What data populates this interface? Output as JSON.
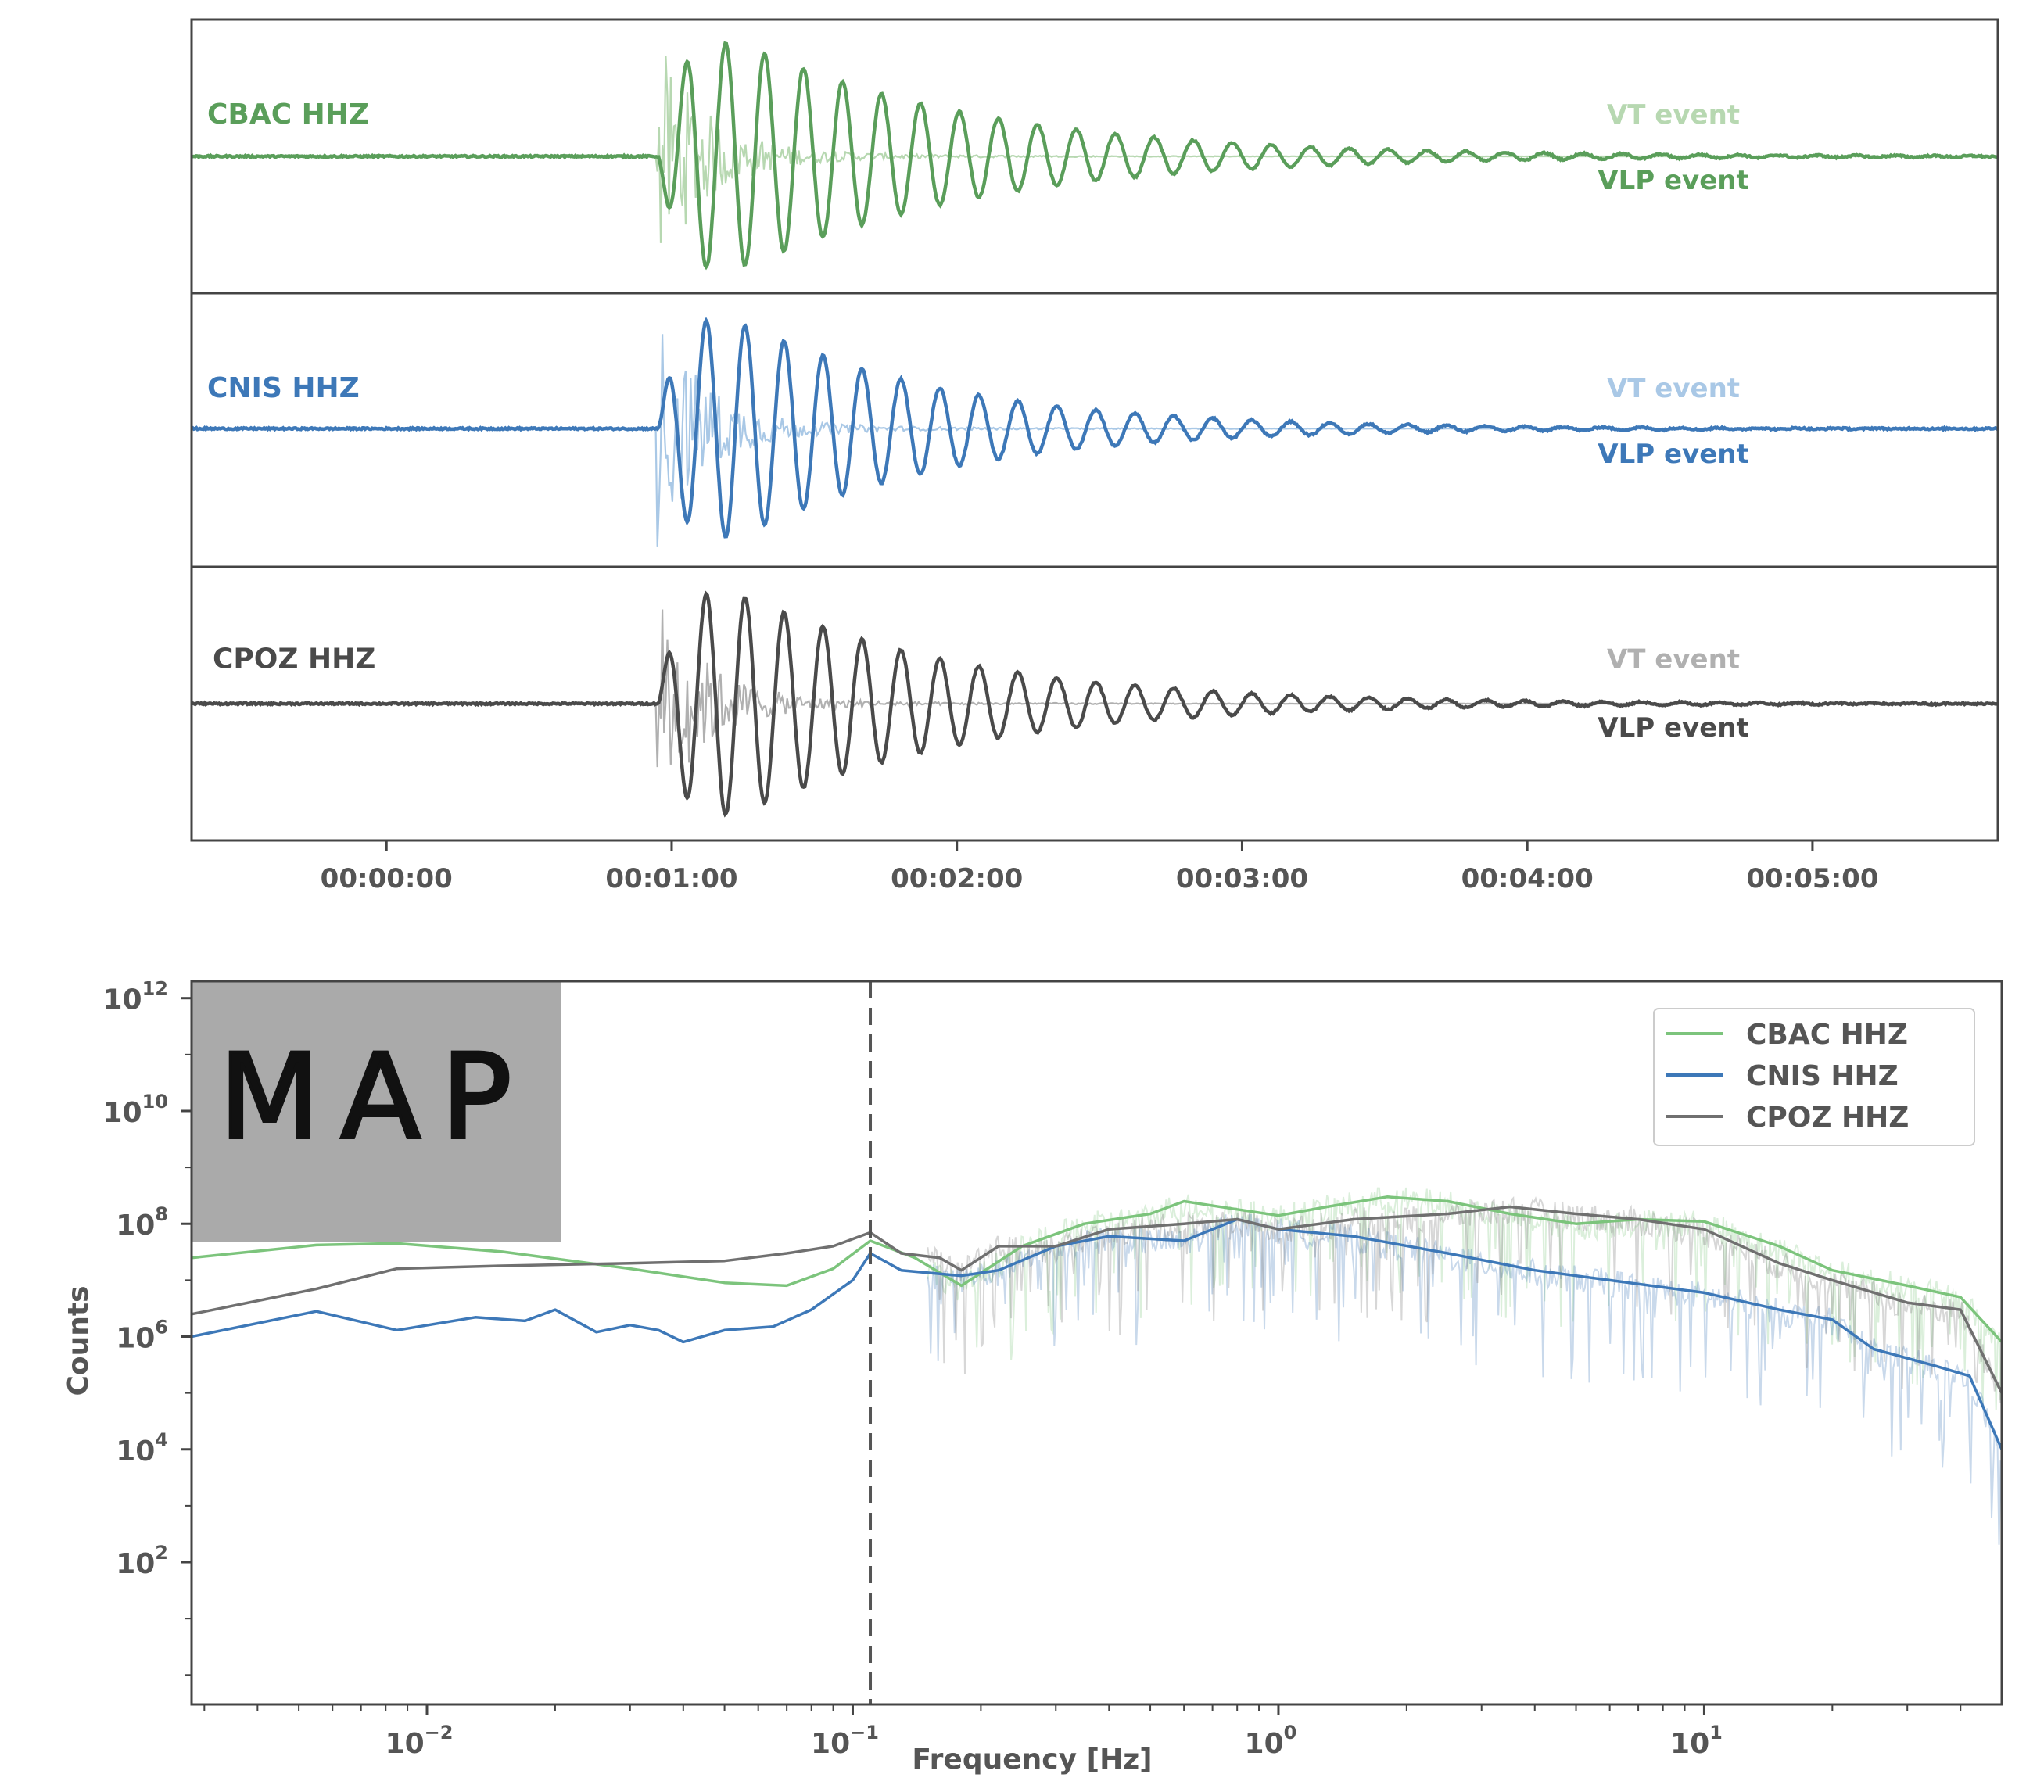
{
  "chart_data": [
    {
      "type": "line",
      "panel": "waveforms",
      "x_unit": "time (HH:MM:SS)",
      "xlim": [
        "-00:00:41",
        "00:05:39"
      ],
      "xticks": [
        "00:00:00",
        "00:01:00",
        "00:02:00",
        "00:03:00",
        "00:04:00",
        "00:05:00"
      ],
      "traces": [
        {
          "station": "CBAC HHZ",
          "color": "#5a9e5a",
          "vt_color": "#b7d8b1",
          "vt_label": "VT event",
          "vlp_label": "VLP event",
          "onset": "00:00:57",
          "vlp_period_s": 8.2,
          "vlp_decay_s": 48,
          "vlp_peak_relative": 1.0,
          "vt_peak_relative": 0.95
        },
        {
          "station": "CNIS HHZ",
          "color": "#3d78b8",
          "vt_color": "#a9c8e6",
          "vt_label": "VT event",
          "vlp_label": "VLP event",
          "onset": "00:00:57",
          "vlp_period_s": 8.2,
          "vlp_decay_s": 42,
          "vlp_peak_relative": 1.0,
          "vt_peak_relative": 0.95
        },
        {
          "station": "CPOZ HHZ",
          "color": "#4a4a4a",
          "vt_color": "#b0b0b0",
          "vt_label": "VT event",
          "vlp_label": "VLP event",
          "onset": "00:00:57",
          "vlp_period_s": 8.2,
          "vlp_decay_s": 45,
          "vlp_peak_relative": 1.0,
          "vt_peak_relative": 0.9
        }
      ]
    },
    {
      "type": "line",
      "panel": "spectra",
      "xlabel": "Frequency [Hz]",
      "ylabel": "Counts",
      "xscale": "log",
      "yscale": "log",
      "xlim": [
        0.0028,
        50
      ],
      "ylim": [
        0.3,
        2000000000000.0
      ],
      "xticks": [
        {
          "base": "10",
          "exp": "−2"
        },
        {
          "base": "10",
          "exp": "−1"
        },
        {
          "base": "10",
          "exp": "0"
        },
        {
          "base": "10",
          "exp": "1"
        }
      ],
      "yticks": [
        {
          "base": "10",
          "exp": "2"
        },
        {
          "base": "10",
          "exp": "4"
        },
        {
          "base": "10",
          "exp": "6"
        },
        {
          "base": "10",
          "exp": "8"
        },
        {
          "base": "10",
          "exp": "10"
        },
        {
          "base": "10",
          "exp": "12"
        }
      ],
      "vline_x": 0.11,
      "legend_position": "top-right",
      "inset_text": "MAP",
      "series": [
        {
          "name": "CBAC HHZ",
          "color": "#7cc47c",
          "x": [
            0.0028,
            0.0055,
            0.0085,
            0.015,
            0.03,
            0.05,
            0.07,
            0.09,
            0.11,
            0.14,
            0.18,
            0.25,
            0.35,
            0.5,
            0.6,
            0.8,
            1.0,
            1.3,
            1.8,
            2.5,
            3.5,
            5,
            7,
            10,
            15,
            20,
            30,
            40,
            50
          ],
          "y": [
            25000000.0,
            42000000.0,
            45000000.0,
            32000000.0,
            16000000.0,
            9000000.0,
            8000000.0,
            16000000.0,
            50000000.0,
            25000000.0,
            8000000.0,
            40000000.0,
            100000000.0,
            150000000.0,
            250000000.0,
            180000000.0,
            140000000.0,
            200000000.0,
            300000000.0,
            250000000.0,
            150000000.0,
            100000000.0,
            120000000.0,
            110000000.0,
            40000000.0,
            15000000.0,
            8000000.0,
            5000000.0,
            800000.0
          ]
        },
        {
          "name": "CNIS HHZ",
          "color": "#3d78b8",
          "x": [
            0.0028,
            0.0055,
            0.0085,
            0.013,
            0.017,
            0.02,
            0.025,
            0.03,
            0.035,
            0.04,
            0.05,
            0.065,
            0.08,
            0.1,
            0.11,
            0.13,
            0.18,
            0.22,
            0.3,
            0.4,
            0.6,
            0.8,
            1.0,
            1.5,
            2.5,
            4,
            6,
            10,
            15,
            20,
            25,
            35,
            42,
            50
          ],
          "y": [
            1000000.0,
            2800000.0,
            1300000.0,
            2200000.0,
            1900000.0,
            3000000.0,
            1200000.0,
            1600000.0,
            1300000.0,
            800000.0,
            1300000.0,
            1500000.0,
            3000000.0,
            10000000.0,
            30000000.0,
            15000000.0,
            12000000.0,
            15000000.0,
            40000000.0,
            60000000.0,
            50000000.0,
            120000000.0,
            80000000.0,
            60000000.0,
            30000000.0,
            15000000.0,
            10000000.0,
            6000000.0,
            3000000.0,
            2000000.0,
            600000.0,
            300000.0,
            200000.0,
            10000.0
          ]
        },
        {
          "name": "CPOZ HHZ",
          "color": "#707070",
          "x": [
            0.0028,
            0.0055,
            0.0085,
            0.015,
            0.03,
            0.05,
            0.07,
            0.09,
            0.11,
            0.13,
            0.16,
            0.18,
            0.22,
            0.3,
            0.4,
            0.6,
            0.8,
            1.0,
            1.5,
            2.5,
            3.5,
            5,
            7,
            10,
            15,
            20,
            30,
            40,
            50
          ],
          "y": [
            2500000.0,
            7000000.0,
            16000000.0,
            18000000.0,
            20000000.0,
            22000000.0,
            30000000.0,
            40000000.0,
            70000000.0,
            30000000.0,
            25000000.0,
            15000000.0,
            40000000.0,
            40000000.0,
            80000000.0,
            100000000.0,
            120000000.0,
            80000000.0,
            120000000.0,
            150000000.0,
            200000000.0,
            150000000.0,
            120000000.0,
            80000000.0,
            20000000.0,
            10000000.0,
            4000000.0,
            3000000.0,
            100000.0
          ]
        }
      ]
    }
  ]
}
